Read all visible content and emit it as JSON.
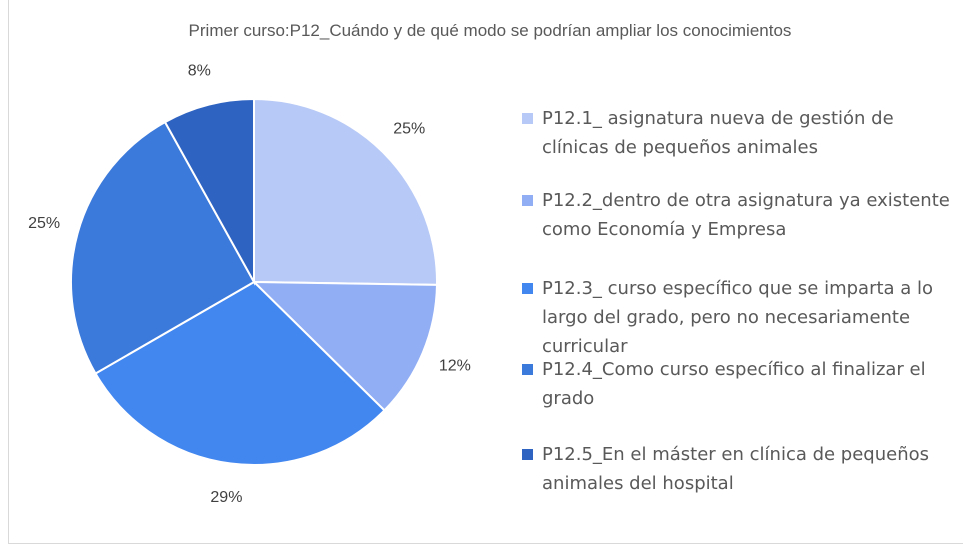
{
  "chart_data": {
    "type": "pie",
    "title": "Primer curso:P12_Cuándo  y de qué modo se podrían ampliar los conocimientos",
    "categories": [
      "P12.1_ asignatura nueva de gestión de clínicas de pequeños animales",
      "P12.2_dentro de otra asignatura ya existente como Economía y Empresa",
      "P12.3_ curso específico que se imparta a lo largo del grado, pero no necesariamente curricular",
      "P12.4_Como curso específico al finalizar el grado",
      "P12.5_En el máster en clínica de pequeños animales del hospital"
    ],
    "values": [
      25,
      12,
      29,
      25,
      8
    ],
    "value_labels": [
      "25%",
      "12%",
      "29%",
      "25%",
      "8%"
    ],
    "colors": [
      "#b7c9f6",
      "#91aef4",
      "#4286f0",
      "#3b79da",
      "#2f63c1"
    ],
    "legend": "right"
  }
}
